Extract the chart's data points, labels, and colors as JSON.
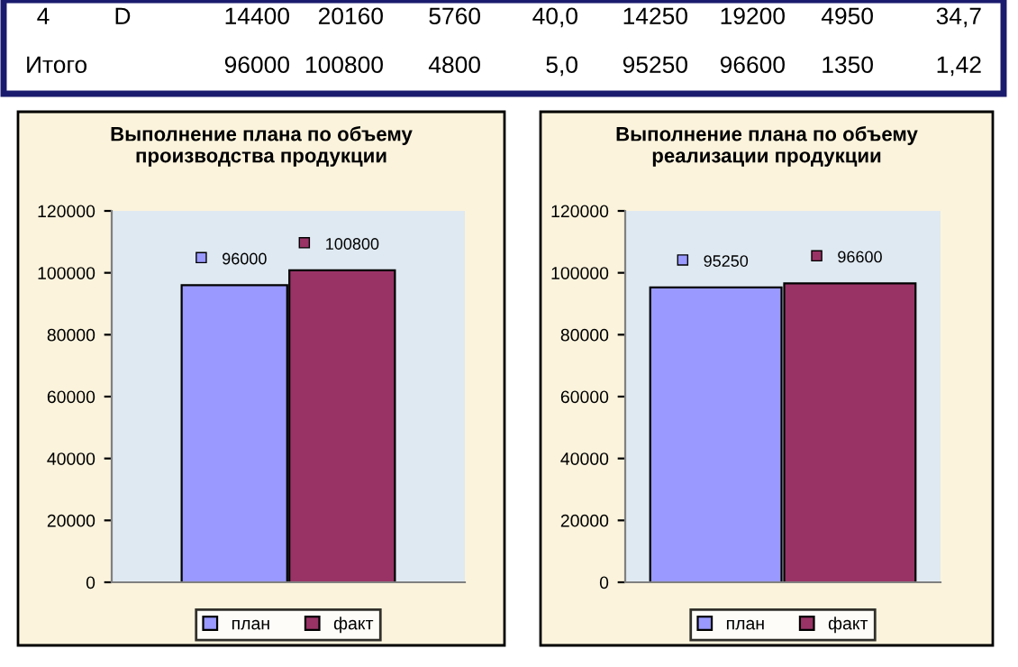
{
  "chart_data": [
    {
      "type": "other",
      "annotations": [
        "4",
        "D",
        "14400",
        "20160",
        "5760",
        "40,0",
        "14250",
        "19200",
        "4950",
        "34,7",
        "Итого",
        "96000",
        "100800",
        "4800",
        "5,0",
        "95250",
        "96600",
        "1350",
        "1,42"
      ]
    },
    {
      "type": "bar",
      "title": "Выполнение плана по объему производства продукции",
      "categories": [
        null
      ],
      "series": [
        {
          "name": "план",
          "color": "#9999ff",
          "values": [
            96000
          ]
        },
        {
          "name": "факт",
          "color": "#993366",
          "values": [
            100800
          ]
        }
      ],
      "ylim": [
        0,
        120000
      ],
      "yticks": [
        0,
        20000,
        40000,
        60000,
        80000,
        100000,
        120000
      ],
      "data_labels": true,
      "legend": "bottom"
    },
    {
      "type": "bar",
      "title": "Выполнение плана по объему реализации продукции",
      "categories": [
        null
      ],
      "series": [
        {
          "name": "план",
          "color": "#9999ff",
          "values": [
            95250
          ]
        },
        {
          "name": "факт",
          "color": "#993366",
          "values": [
            96600
          ]
        }
      ],
      "ylim": [
        0,
        120000
      ],
      "yticks": [
        0,
        20000,
        40000,
        60000,
        80000,
        100000,
        120000
      ],
      "data_labels": true,
      "legend": "bottom"
    }
  ]
}
